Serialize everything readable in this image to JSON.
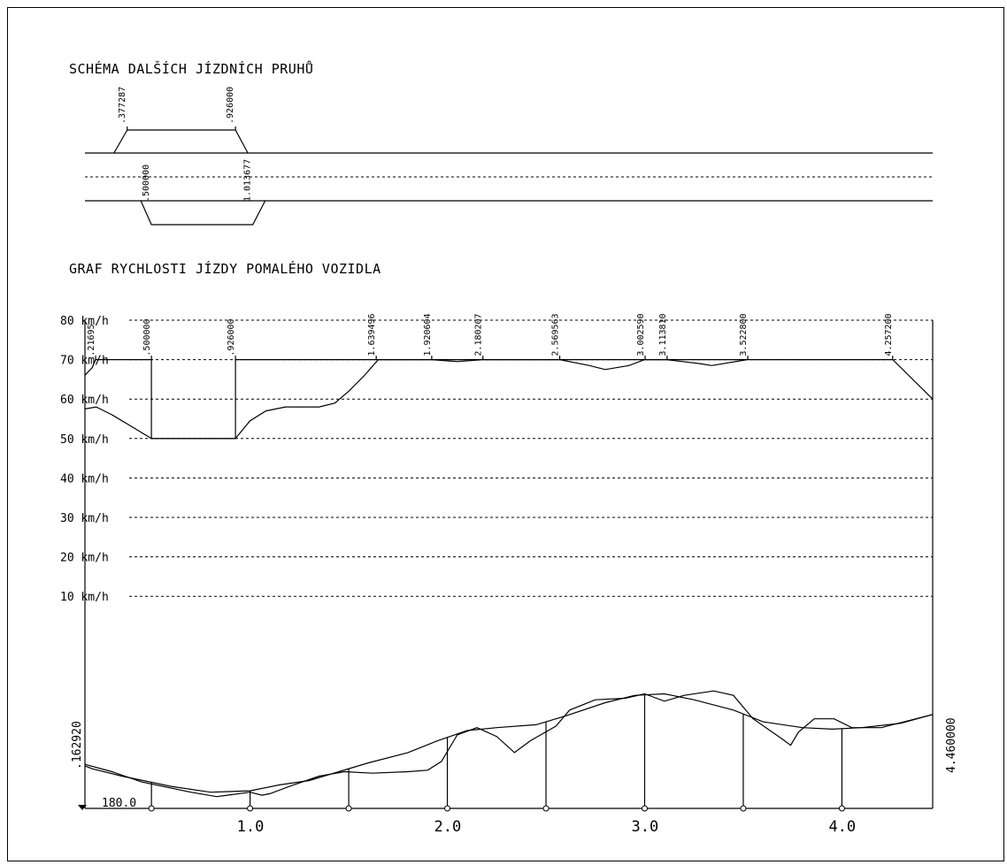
{
  "chart_data": {
    "type": "line",
    "title": "GRAF RYCHLOSTI JÍZDY  POMALÉHO VOZIDLA",
    "lane_scheme": {
      "title": "SCHÉMA DALŠÍCH JÍZDNÍCH PRUHŮ",
      "upper_lane": {
        "start": 0.377287,
        "end": 0.926,
        "start_label": ".377287",
        "end_label": ".926000"
      },
      "lower_lane": {
        "start": 0.5,
        "end": 1.013677,
        "start_label": ".500000",
        "end_label": "1.013677"
      }
    },
    "xlim": [
      0.16292,
      4.46
    ],
    "ylim": [
      0,
      80
    ],
    "x_ticks": [
      1.0,
      2.0,
      3.0,
      4.0
    ],
    "x_tick_labels": [
      "1.0",
      "2.0",
      "3.0",
      "4.0"
    ],
    "y_ticks": [
      10,
      20,
      30,
      40,
      50,
      60,
      70,
      80
    ],
    "y_tick_labels": [
      "10 km/h",
      "20 km/h",
      "30 km/h",
      "40 km/h",
      "50 km/h",
      "60 km/h",
      "70 km/h",
      "80 km/h"
    ],
    "grid": "dashed horizontal",
    "station_labels": [
      {
        "x": 0.21695,
        "label": ".21695"
      },
      {
        "x": 0.5,
        "label": ".500000"
      },
      {
        "x": 0.926,
        "label": ".926000"
      },
      {
        "x": 1.639496,
        "label": "1.639496"
      },
      {
        "x": 1.920604,
        "label": "1.920604"
      },
      {
        "x": 2.180207,
        "label": "2.180207"
      },
      {
        "x": 2.569563,
        "label": "2.569563"
      },
      {
        "x": 3.00259,
        "label": "3.002590"
      },
      {
        "x": 3.11381,
        "label": "3.113810"
      },
      {
        "x": 3.5228,
        "label": "3.522800"
      },
      {
        "x": 4.2572,
        "label": "4.257200"
      }
    ],
    "series": [
      {
        "values": [
          [
            0.162,
            66
          ],
          [
            0.2,
            68
          ],
          [
            0.2169,
            70
          ],
          [
            0.5,
            70
          ],
          [
            0.5,
            50
          ],
          [
            0.926,
            50
          ],
          [
            0.926,
            70
          ],
          [
            4.2572,
            70
          ],
          [
            4.46,
            60
          ]
        ]
      },
      {
        "values": [
          [
            0.162,
            57.5
          ],
          [
            0.22,
            58
          ],
          [
            0.3,
            56
          ],
          [
            0.4,
            53
          ],
          [
            0.5,
            50
          ],
          [
            0.926,
            50
          ],
          [
            1.0,
            54.5
          ],
          [
            1.08,
            57
          ],
          [
            1.18,
            58
          ],
          [
            1.35,
            58
          ],
          [
            1.43,
            59
          ],
          [
            1.5,
            62
          ],
          [
            1.58,
            66
          ],
          [
            1.65,
            70
          ],
          [
            1.92,
            70
          ],
          [
            2.05,
            69.5
          ],
          [
            2.18,
            70
          ],
          [
            2.57,
            70
          ],
          [
            2.72,
            68.5
          ],
          [
            2.8,
            67.5
          ],
          [
            2.92,
            68.5
          ],
          [
            3.0,
            70
          ],
          [
            3.11,
            70
          ],
          [
            3.28,
            69
          ],
          [
            3.34,
            68.5
          ],
          [
            3.52,
            70
          ]
        ]
      }
    ],
    "profile": {
      "label_left": ".162920",
      "label_right": "4.460000",
      "label_base": "180.0",
      "line_a": [
        [
          0.162,
          179
        ],
        [
          0.2,
          177
        ],
        [
          0.35,
          172
        ],
        [
          0.6,
          165
        ],
        [
          0.8,
          161
        ],
        [
          1.0,
          162
        ],
        [
          1.15,
          166
        ],
        [
          1.3,
          169
        ],
        [
          1.45,
          175
        ],
        [
          1.6,
          181
        ],
        [
          1.8,
          188
        ],
        [
          1.95,
          196
        ],
        [
          2.1,
          203
        ],
        [
          2.25,
          205
        ],
        [
          2.45,
          207
        ],
        [
          2.6,
          213
        ],
        [
          2.8,
          222
        ],
        [
          2.95,
          227
        ],
        [
          3.1,
          228
        ],
        [
          3.25,
          224
        ],
        [
          3.45,
          217
        ],
        [
          3.6,
          209
        ],
        [
          3.8,
          205
        ],
        [
          3.95,
          204
        ],
        [
          4.1,
          205
        ],
        [
          4.3,
          208
        ],
        [
          4.46,
          214
        ]
      ],
      "line_b": [
        [
          0.162,
          180
        ],
        [
          0.3,
          175
        ],
        [
          0.45,
          168
        ],
        [
          0.7,
          161
        ],
        [
          0.83,
          158
        ],
        [
          1.0,
          161
        ],
        [
          1.06,
          159
        ],
        [
          1.1,
          160
        ],
        [
          1.2,
          165
        ],
        [
          1.35,
          172
        ],
        [
          1.48,
          175
        ],
        [
          1.62,
          174
        ],
        [
          1.8,
          175
        ],
        [
          1.9,
          176
        ],
        [
          1.97,
          182
        ],
        [
          2.05,
          200
        ],
        [
          2.15,
          205
        ],
        [
          2.25,
          199
        ],
        [
          2.34,
          188
        ],
        [
          2.42,
          196
        ],
        [
          2.55,
          206
        ],
        [
          2.62,
          217
        ],
        [
          2.75,
          224
        ],
        [
          2.9,
          225
        ],
        [
          3.0,
          228
        ],
        [
          3.1,
          223
        ],
        [
          3.2,
          227
        ],
        [
          3.35,
          230
        ],
        [
          3.45,
          227
        ],
        [
          3.55,
          211
        ],
        [
          3.7,
          197
        ],
        [
          3.74,
          193
        ],
        [
          3.78,
          202
        ],
        [
          3.86,
          211
        ],
        [
          3.96,
          211
        ],
        [
          4.05,
          205
        ],
        [
          4.2,
          205
        ],
        [
          4.46,
          214
        ]
      ],
      "station_lines": [
        0.5,
        1.0,
        1.5,
        2.0,
        2.5,
        3.0,
        3.5,
        4.0
      ]
    }
  }
}
